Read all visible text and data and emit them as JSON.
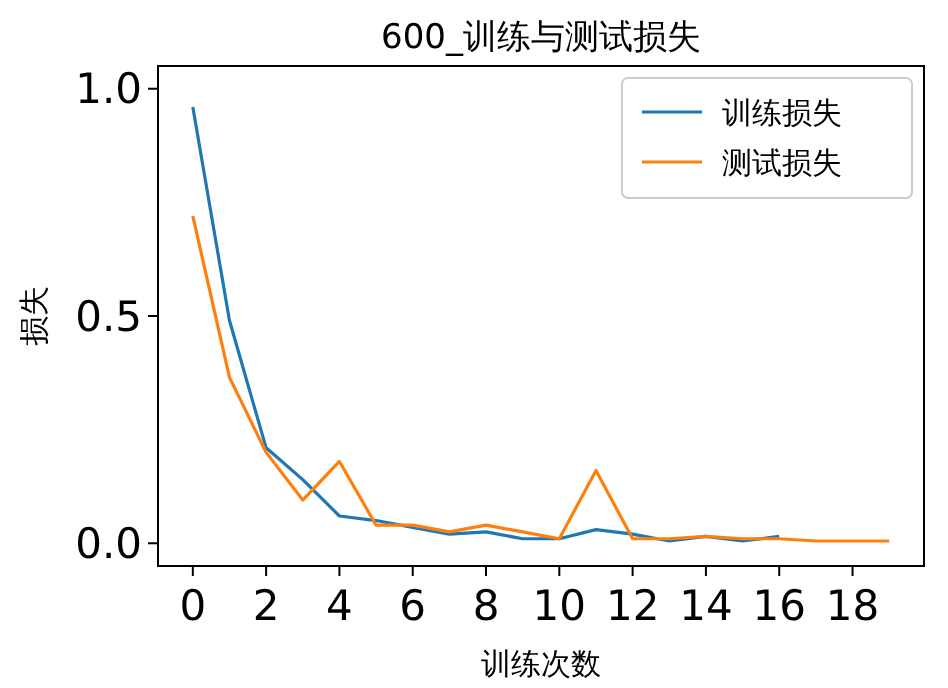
{
  "chart_data": {
    "type": "line",
    "title": "600_训练与测试损失",
    "xlabel": "训练次数",
    "ylabel": "损失",
    "x": [
      0,
      1,
      2,
      3,
      4,
      5,
      6,
      7,
      8,
      9,
      10,
      11,
      12,
      13,
      14,
      15,
      16,
      17,
      18,
      19
    ],
    "series": [
      {
        "name": "训练损失",
        "color": "#1f77b4",
        "values": [
          0.96,
          0.49,
          0.21,
          0.14,
          0.06,
          0.05,
          0.035,
          0.02,
          0.025,
          0.01,
          0.01,
          0.03,
          0.02,
          0.005,
          0.015,
          0.005,
          0.015,
          null,
          null,
          null
        ]
      },
      {
        "name": "测试损失",
        "color": "#ff7f0e",
        "values": [
          0.72,
          0.365,
          0.2,
          0.095,
          0.18,
          0.04,
          0.04,
          0.025,
          0.04,
          0.025,
          0.01,
          0.16,
          0.01,
          0.01,
          0.015,
          0.01,
          0.01,
          0.005,
          0.005,
          0.005
        ]
      }
    ],
    "xlim": [
      -0.95,
      19.95
    ],
    "ylim": [
      -0.05,
      1.05
    ],
    "xticks": [
      0,
      2,
      4,
      6,
      8,
      10,
      12,
      14,
      16,
      18
    ],
    "yticks": [
      {
        "value": 0,
        "label": "0.0"
      },
      {
        "value": 0.5,
        "label": "0.5"
      },
      {
        "value": 1,
        "label": "1.0"
      }
    ],
    "legend": "top right",
    "grid": false,
    "marker": "none",
    "line_style": "solid"
  }
}
